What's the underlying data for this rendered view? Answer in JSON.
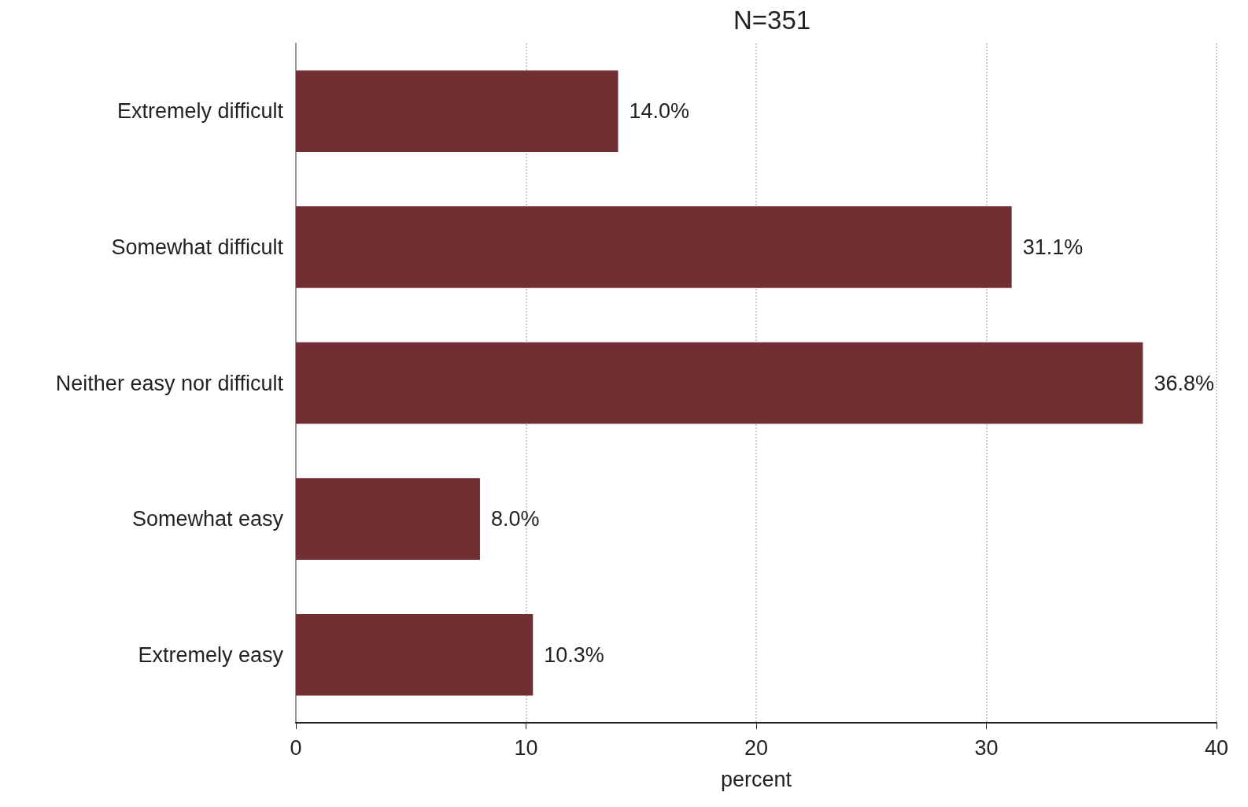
{
  "chart_data": {
    "type": "bar",
    "orientation": "horizontal",
    "title": "N=351",
    "xlabel": "percent",
    "categories": [
      "Extremely difficult",
      "Somewhat difficult",
      "Neither easy nor difficult",
      "Somewhat easy",
      "Extremely easy"
    ],
    "values": [
      14.0,
      31.1,
      36.8,
      8.0,
      10.3
    ],
    "value_labels": [
      "14.0%",
      "31.1%",
      "36.8%",
      "8.0%",
      "10.3%"
    ],
    "color": "#722f33",
    "xlim": [
      0,
      40
    ],
    "xticks": [
      0,
      10,
      20,
      30,
      40
    ],
    "grid": "x"
  }
}
